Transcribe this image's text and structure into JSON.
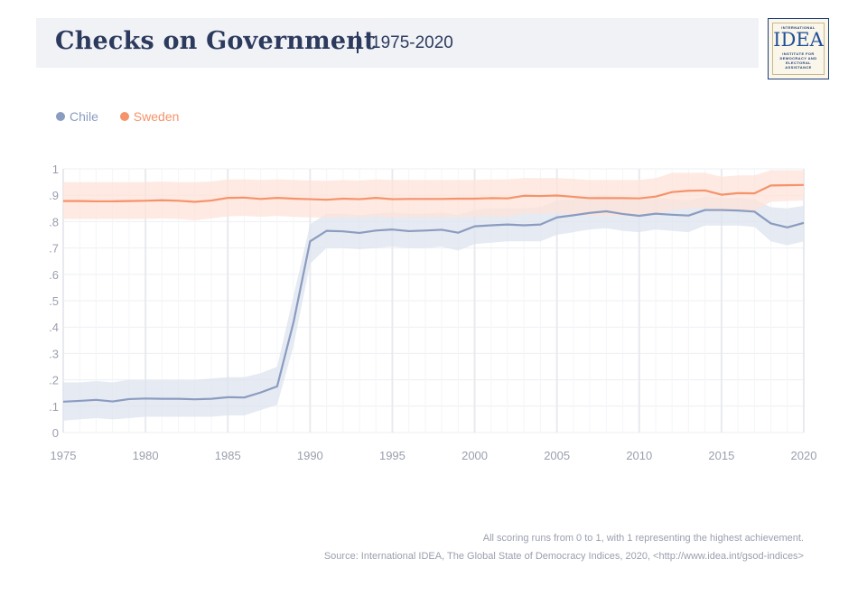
{
  "header": {
    "title": "Checks on Government",
    "subtitle": "1975-2020"
  },
  "logo": {
    "top": "INTERNATIONAL",
    "main": "IDEA",
    "bottom_lines": [
      "INSTITUTE FOR",
      "DEMOCRACY AND",
      "ELECTORAL",
      "ASSISTANCE"
    ]
  },
  "footer": {
    "note": "All scoring runs from 0 to 1, with 1 representing the highest achievement.",
    "source": "Source: International IDEA, The Global State of Democracy Indices, 2020, <http://www.idea.int/gsod-indices>"
  },
  "chart_data": {
    "type": "line",
    "x": [
      1975,
      1976,
      1977,
      1978,
      1979,
      1980,
      1981,
      1982,
      1983,
      1984,
      1985,
      1986,
      1987,
      1988,
      1989,
      1990,
      1991,
      1992,
      1993,
      1994,
      1995,
      1996,
      1997,
      1998,
      1999,
      2000,
      2001,
      2002,
      2003,
      2004,
      2005,
      2006,
      2007,
      2008,
      2009,
      2010,
      2011,
      2012,
      2013,
      2014,
      2015,
      2016,
      2017,
      2018,
      2019,
      2020
    ],
    "xticks": [
      "1975",
      "1980",
      "1985",
      "1990",
      "1995",
      "2000",
      "2005",
      "2010",
      "2015",
      "2020"
    ],
    "yticks": [
      "0",
      ".1",
      ".2",
      ".3",
      ".4",
      ".5",
      ".6",
      ".7",
      ".8",
      ".9",
      "1"
    ],
    "ylim": [
      0,
      1
    ],
    "legend_position": "top-left",
    "grid": true,
    "series": [
      {
        "name": "Chile",
        "color": "#8a9cc0",
        "band_color": "#dde3ee",
        "values": [
          0.117,
          0.12,
          0.124,
          0.118,
          0.127,
          0.129,
          0.128,
          0.128,
          0.126,
          0.128,
          0.134,
          0.133,
          0.152,
          0.175,
          0.42,
          0.725,
          0.765,
          0.763,
          0.757,
          0.766,
          0.77,
          0.764,
          0.766,
          0.769,
          0.758,
          0.782,
          0.786,
          0.789,
          0.786,
          0.789,
          0.816,
          0.824,
          0.833,
          0.839,
          0.829,
          0.822,
          0.83,
          0.826,
          0.823,
          0.844,
          0.844,
          0.842,
          0.838,
          0.793,
          0.778,
          0.795
        ],
        "upper": [
          0.19,
          0.19,
          0.195,
          0.19,
          0.2,
          0.2,
          0.2,
          0.2,
          0.2,
          0.205,
          0.21,
          0.21,
          0.225,
          0.25,
          0.52,
          0.79,
          0.83,
          0.83,
          0.825,
          0.83,
          0.835,
          0.83,
          0.83,
          0.835,
          0.825,
          0.845,
          0.85,
          0.85,
          0.85,
          0.855,
          0.88,
          0.885,
          0.895,
          0.9,
          0.89,
          0.88,
          0.89,
          0.885,
          0.88,
          0.895,
          0.89,
          0.89,
          0.885,
          0.855,
          0.85,
          0.86
        ],
        "lower": [
          0.045,
          0.05,
          0.055,
          0.05,
          0.055,
          0.06,
          0.06,
          0.06,
          0.06,
          0.06,
          0.065,
          0.065,
          0.085,
          0.105,
          0.33,
          0.64,
          0.7,
          0.7,
          0.695,
          0.7,
          0.705,
          0.7,
          0.7,
          0.705,
          0.69,
          0.715,
          0.72,
          0.725,
          0.725,
          0.725,
          0.75,
          0.76,
          0.77,
          0.775,
          0.765,
          0.76,
          0.77,
          0.765,
          0.76,
          0.785,
          0.785,
          0.785,
          0.78,
          0.725,
          0.71,
          0.725
        ]
      },
      {
        "name": "Sweden",
        "color": "#f5936a",
        "band_color": "#fde3d8",
        "values": [
          0.878,
          0.878,
          0.877,
          0.877,
          0.878,
          0.879,
          0.881,
          0.879,
          0.875,
          0.88,
          0.89,
          0.891,
          0.886,
          0.89,
          0.887,
          0.885,
          0.883,
          0.887,
          0.885,
          0.89,
          0.885,
          0.886,
          0.886,
          0.886,
          0.887,
          0.887,
          0.889,
          0.888,
          0.898,
          0.897,
          0.899,
          0.894,
          0.889,
          0.889,
          0.889,
          0.888,
          0.895,
          0.912,
          0.917,
          0.918,
          0.902,
          0.908,
          0.907,
          0.937,
          0.938,
          0.939
        ],
        "upper": [
          0.95,
          0.95,
          0.95,
          0.95,
          0.95,
          0.95,
          0.952,
          0.95,
          0.95,
          0.952,
          0.96,
          0.96,
          0.958,
          0.96,
          0.958,
          0.956,
          0.955,
          0.958,
          0.956,
          0.96,
          0.958,
          0.958,
          0.958,
          0.958,
          0.958,
          0.958,
          0.96,
          0.96,
          0.965,
          0.965,
          0.965,
          0.962,
          0.958,
          0.958,
          0.958,
          0.958,
          0.965,
          0.985,
          0.985,
          0.985,
          0.97,
          0.975,
          0.975,
          0.995,
          0.995,
          0.995
        ],
        "lower": [
          0.81,
          0.81,
          0.81,
          0.81,
          0.81,
          0.81,
          0.812,
          0.81,
          0.805,
          0.812,
          0.82,
          0.822,
          0.818,
          0.822,
          0.818,
          0.816,
          0.815,
          0.818,
          0.816,
          0.82,
          0.815,
          0.816,
          0.816,
          0.816,
          0.818,
          0.818,
          0.82,
          0.818,
          0.83,
          0.83,
          0.832,
          0.828,
          0.822,
          0.822,
          0.822,
          0.82,
          0.828,
          0.845,
          0.85,
          0.852,
          0.838,
          0.842,
          0.84,
          0.875,
          0.878,
          0.88
        ]
      }
    ]
  }
}
